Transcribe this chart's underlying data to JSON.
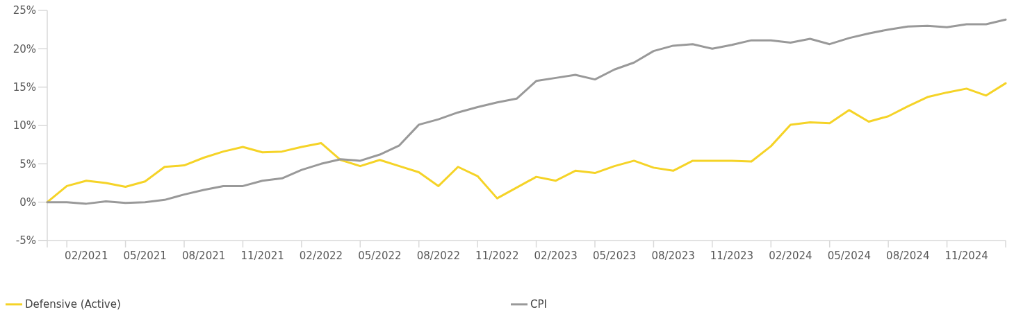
{
  "chart_data": {
    "type": "line",
    "categories": [
      null,
      null,
      "02/2021",
      null,
      null,
      "05/2021",
      null,
      null,
      "08/2021",
      null,
      null,
      "11/2021",
      null,
      null,
      "02/2022",
      null,
      null,
      "05/2022",
      null,
      null,
      "08/2022",
      null,
      null,
      "11/2022",
      null,
      null,
      "02/2023",
      null,
      null,
      "05/2023",
      null,
      null,
      "08/2023",
      null,
      null,
      "11/2023",
      null,
      null,
      "02/2024",
      null,
      null,
      "05/2024",
      null,
      null,
      "08/2024",
      null,
      null,
      "11/2024",
      null,
      null
    ],
    "series": [
      {
        "name": "Defensive (Active)",
        "color": "#f5d327",
        "values": [
          0,
          2.1,
          2.8,
          2.5,
          2.0,
          2.7,
          4.6,
          4.8,
          5.8,
          6.6,
          7.2,
          6.5,
          6.6,
          7.2,
          7.7,
          5.5,
          4.7,
          5.5,
          4.7,
          3.9,
          2.1,
          4.6,
          3.4,
          0.5,
          1.9,
          3.3,
          2.8,
          4.1,
          3.8,
          4.7,
          5.4,
          4.5,
          4.1,
          5.4,
          5.4,
          5.4,
          5.3,
          7.3,
          10.1,
          10.4,
          10.3,
          12.0,
          10.5,
          11.2,
          12.5,
          13.7,
          14.3,
          14.8,
          13.9,
          15.5
        ]
      },
      {
        "name": "CPI",
        "color": "#999999",
        "values": [
          0,
          0,
          -0.2,
          0.1,
          -0.1,
          0,
          0.3,
          1.0,
          1.6,
          2.1,
          2.1,
          2.8,
          3.1,
          4.2,
          5.0,
          5.6,
          5.4,
          6.2,
          7.4,
          10.1,
          10.8,
          11.7,
          12.4,
          13.0,
          13.5,
          15.8,
          16.2,
          16.6,
          16.0,
          17.3,
          18.2,
          19.7,
          20.4,
          20.6,
          20.0,
          20.5,
          21.1,
          21.1,
          20.8,
          21.3,
          20.6,
          21.4,
          22.0,
          22.5,
          22.9,
          23.0,
          22.8,
          23.2,
          23.2,
          23.8
        ]
      }
    ],
    "ylim": [
      -5,
      25
    ],
    "yticks": [
      {
        "value": -5,
        "label": "-5%"
      },
      {
        "value": 0,
        "label": "0%"
      },
      {
        "value": 5,
        "label": "5%"
      },
      {
        "value": 10,
        "label": "10%"
      },
      {
        "value": 15,
        "label": "15%"
      },
      {
        "value": 20,
        "label": "20%"
      },
      {
        "value": 25,
        "label": "25%"
      }
    ],
    "legend": "bottom left",
    "grid": false,
    "marker": "none",
    "line_style": "solid"
  }
}
